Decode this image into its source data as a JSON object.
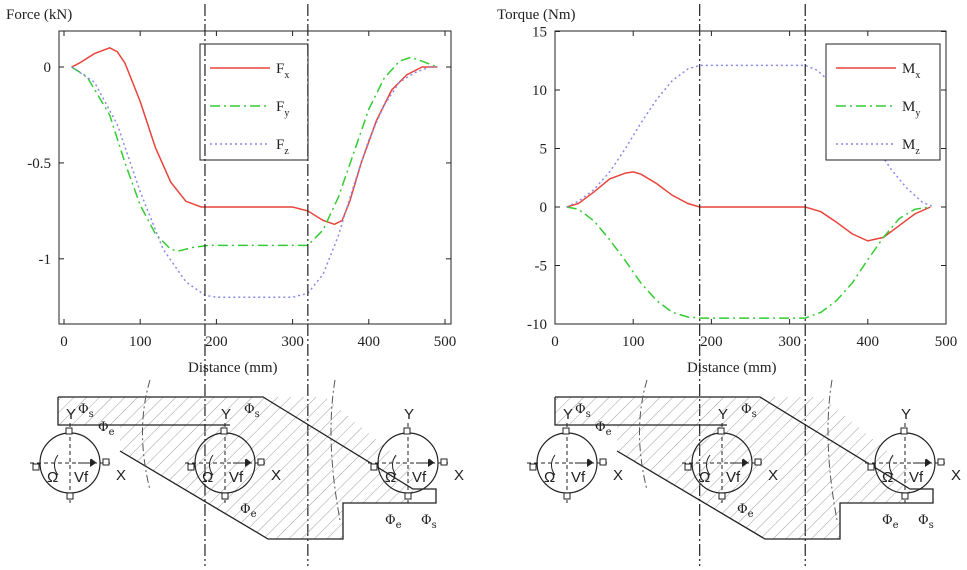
{
  "colors": {
    "fx": "#e8443a",
    "fy": "#33cc33",
    "fz": "#8a8ae8",
    "axis": "#222222",
    "hatch": "#9a9a9a"
  },
  "chart_data": [
    {
      "type": "line",
      "title": "",
      "ylabel": "Force (kN)",
      "xlabel": "Distance (mm)",
      "xlim": [
        0,
        500
      ],
      "ylim": [
        -1.3,
        0.15
      ],
      "xticks": [
        0,
        100,
        200,
        300,
        400,
        500
      ],
      "yticks": [
        0,
        -0.5,
        -1
      ],
      "ytick_labels": [
        "0",
        "-0.5",
        "-1"
      ],
      "vlines": [
        185,
        320
      ],
      "legend": {
        "position": "top-center",
        "entries": [
          {
            "base": "F",
            "sub": "x"
          },
          {
            "base": "F",
            "sub": "y"
          },
          {
            "base": "F",
            "sub": "z"
          }
        ]
      },
      "series": [
        {
          "name": "Fx",
          "style": "solid",
          "color": "#e8443a",
          "x": [
            10,
            20,
            40,
            60,
            70,
            80,
            100,
            120,
            140,
            160,
            180,
            200,
            250,
            300,
            320,
            340,
            355,
            365,
            375,
            390,
            410,
            430,
            450,
            470,
            490
          ],
          "y": [
            0,
            0.02,
            0.07,
            0.1,
            0.08,
            0.02,
            -0.18,
            -0.42,
            -0.6,
            -0.7,
            -0.73,
            -0.73,
            -0.73,
            -0.73,
            -0.75,
            -0.8,
            -0.82,
            -0.8,
            -0.7,
            -0.5,
            -0.28,
            -0.12,
            -0.04,
            0,
            0
          ]
        },
        {
          "name": "Fy",
          "style": "dashdot",
          "color": "#33cc33",
          "x": [
            10,
            30,
            60,
            80,
            100,
            120,
            140,
            150,
            170,
            190,
            250,
            320,
            340,
            360,
            380,
            400,
            420,
            440,
            455,
            470,
            490
          ],
          "y": [
            0,
            -0.05,
            -0.25,
            -0.5,
            -0.72,
            -0.87,
            -0.95,
            -0.96,
            -0.94,
            -0.93,
            -0.93,
            -0.93,
            -0.85,
            -0.68,
            -0.45,
            -0.22,
            -0.06,
            0.03,
            0.05,
            0.03,
            0
          ]
        },
        {
          "name": "Fz",
          "style": "dotted",
          "color": "#8a8ae8",
          "x": [
            10,
            40,
            70,
            100,
            130,
            160,
            185,
            200,
            250,
            300,
            320,
            340,
            360,
            380,
            400,
            420,
            440,
            460,
            480,
            490
          ],
          "y": [
            0,
            -0.08,
            -0.3,
            -0.65,
            -0.95,
            -1.12,
            -1.19,
            -1.2,
            -1.2,
            -1.2,
            -1.18,
            -1.08,
            -0.88,
            -0.62,
            -0.38,
            -0.2,
            -0.08,
            -0.03,
            0,
            0
          ]
        }
      ]
    },
    {
      "type": "line",
      "title": "",
      "ylabel": "Torque (Nm)",
      "xlabel": "Distance (mm)",
      "xlim": [
        0,
        500
      ],
      "ylim": [
        -10,
        15
      ],
      "xticks": [
        0,
        100,
        200,
        300,
        400,
        500
      ],
      "yticks": [
        15,
        10,
        5,
        0,
        -5,
        -10
      ],
      "ytick_labels": [
        "15",
        "10",
        "5",
        "0",
        "-5",
        "-10"
      ],
      "vlines": [
        185,
        320
      ],
      "legend": {
        "position": "top-right",
        "entries": [
          {
            "base": "M",
            "sub": "x"
          },
          {
            "base": "M",
            "sub": "y"
          },
          {
            "base": "M",
            "sub": "z"
          }
        ]
      },
      "series": [
        {
          "name": "Mx",
          "style": "solid",
          "color": "#e8443a",
          "x": [
            15,
            30,
            50,
            70,
            90,
            100,
            110,
            130,
            150,
            170,
            185,
            250,
            320,
            340,
            360,
            380,
            400,
            420,
            440,
            460,
            480
          ],
          "y": [
            0,
            0.3,
            1.3,
            2.4,
            2.9,
            3.0,
            2.8,
            2.0,
            1.0,
            0.3,
            0,
            0,
            0,
            -0.4,
            -1.3,
            -2.3,
            -2.9,
            -2.6,
            -1.6,
            -0.6,
            0
          ]
        },
        {
          "name": "My",
          "style": "dashdot",
          "color": "#33cc33",
          "x": [
            15,
            30,
            50,
            70,
            90,
            110,
            130,
            150,
            170,
            185,
            250,
            320,
            340,
            360,
            380,
            400,
            420,
            440,
            460,
            480
          ],
          "y": [
            0,
            -0.2,
            -1.2,
            -2.8,
            -4.6,
            -6.5,
            -8.0,
            -9.0,
            -9.4,
            -9.5,
            -9.5,
            -9.5,
            -9.0,
            -8.0,
            -6.5,
            -4.5,
            -2.6,
            -1.0,
            -0.2,
            0
          ]
        },
        {
          "name": "Mz",
          "style": "dotted",
          "color": "#8a8ae8",
          "x": [
            15,
            30,
            50,
            70,
            90,
            110,
            130,
            150,
            170,
            185,
            250,
            320,
            335,
            350,
            370,
            390,
            410,
            430,
            450,
            470,
            485
          ],
          "y": [
            0,
            0.5,
            1.5,
            3.0,
            5.0,
            7.2,
            9.2,
            10.8,
            11.8,
            12.1,
            12.1,
            12.1,
            11.7,
            10.8,
            9.2,
            7.2,
            5.2,
            3.2,
            1.6,
            0.4,
            0
          ]
        }
      ]
    }
  ],
  "diagram_labels": {
    "y": "Y",
    "x": "X",
    "phi_s": "Φ",
    "phi_e": "Φ",
    "sub_s": "s",
    "sub_e": "e",
    "omega": "Ω",
    "vf": "Vf"
  }
}
